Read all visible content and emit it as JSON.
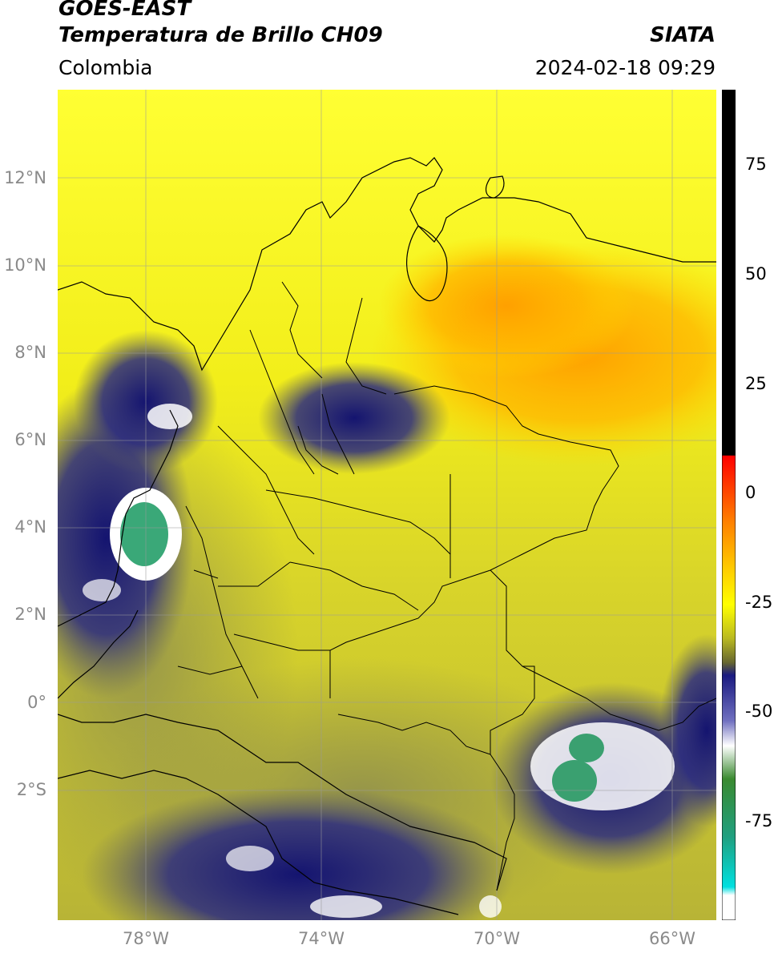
{
  "header": {
    "satellite": "GOES-EAST",
    "product": "Temperatura de Brillo CH09",
    "region": "Colombia",
    "agency": "SIATA",
    "datetime": "2024-02-18 09:29"
  },
  "map": {
    "lat_range": [
      -5.0,
      14.0
    ],
    "lon_range": [
      -80.0,
      -65.0
    ],
    "lat_ticks": [
      {
        "value": 12,
        "label": "12°N"
      },
      {
        "value": 10,
        "label": "10°N"
      },
      {
        "value": 8,
        "label": "8°N"
      },
      {
        "value": 6,
        "label": "6°N"
      },
      {
        "value": 4,
        "label": "4°N"
      },
      {
        "value": 2,
        "label": "2°N"
      },
      {
        "value": 0,
        "label": "0°"
      },
      {
        "value": -2,
        "label": "2°S"
      }
    ],
    "lon_ticks": [
      {
        "value": -78,
        "label": "78°W"
      },
      {
        "value": -74,
        "label": "74°W"
      },
      {
        "value": -70,
        "label": "70°W"
      },
      {
        "value": -66,
        "label": "66°W"
      }
    ],
    "grid": true,
    "colors": {
      "warm": "#ffa500",
      "mid": "#ffff00",
      "cool": "#c2c230",
      "cold": "#1a1a80",
      "very_cold": "#ffffff",
      "coldest": "#3aa070"
    }
  },
  "colorbar": {
    "range": [
      -95,
      90
    ],
    "ticks": [
      {
        "value": 75,
        "label": "75"
      },
      {
        "value": 50,
        "label": "50"
      },
      {
        "value": 25,
        "label": "25"
      },
      {
        "value": 0,
        "label": "0"
      },
      {
        "value": -25,
        "label": "-25"
      },
      {
        "value": -50,
        "label": "-50"
      },
      {
        "value": -75,
        "label": "-75"
      }
    ]
  }
}
